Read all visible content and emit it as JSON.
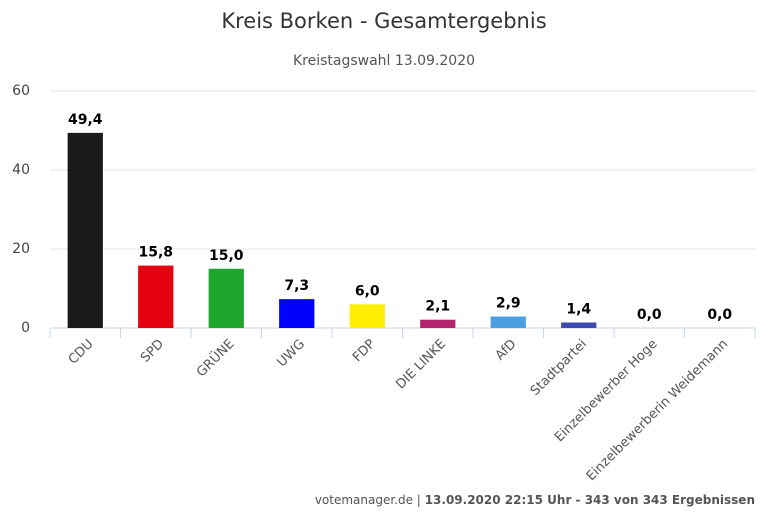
{
  "chart_data": {
    "type": "bar",
    "title": "Kreis Borken - Gesamtergebnis",
    "subtitle": "Kreistagswahl 13.09.2020",
    "categories": [
      "CDU",
      "SPD",
      "GRÜNE",
      "UWG",
      "FDP",
      "DIE LINKE",
      "AfD",
      "Stadtpartei",
      "Einzelbewerber Hoge",
      "Einzelbewerberin Weidemann"
    ],
    "values": [
      49.4,
      15.8,
      15.0,
      7.3,
      6.0,
      2.1,
      2.9,
      1.4,
      0.0,
      0.0
    ],
    "value_labels": [
      "49,4",
      "15,8",
      "15,0",
      "7,3",
      "6,0",
      "2,1",
      "2,9",
      "1,4",
      "0,0",
      "0,0"
    ],
    "colors": [
      "#1a1a1a",
      "#e3000f",
      "#1ea52e",
      "#0000ff",
      "#ffed00",
      "#b3246e",
      "#4a9fe0",
      "#3c4bb0",
      "#888888",
      "#888888"
    ],
    "ylim": [
      0,
      60
    ],
    "yticks": [
      0,
      20,
      40,
      60
    ],
    "grid": true,
    "footer": {
      "source": "votemanager.de |",
      "detail": "13.09.2020 22:15 Uhr - 343 von 343 Ergebnissen"
    }
  }
}
